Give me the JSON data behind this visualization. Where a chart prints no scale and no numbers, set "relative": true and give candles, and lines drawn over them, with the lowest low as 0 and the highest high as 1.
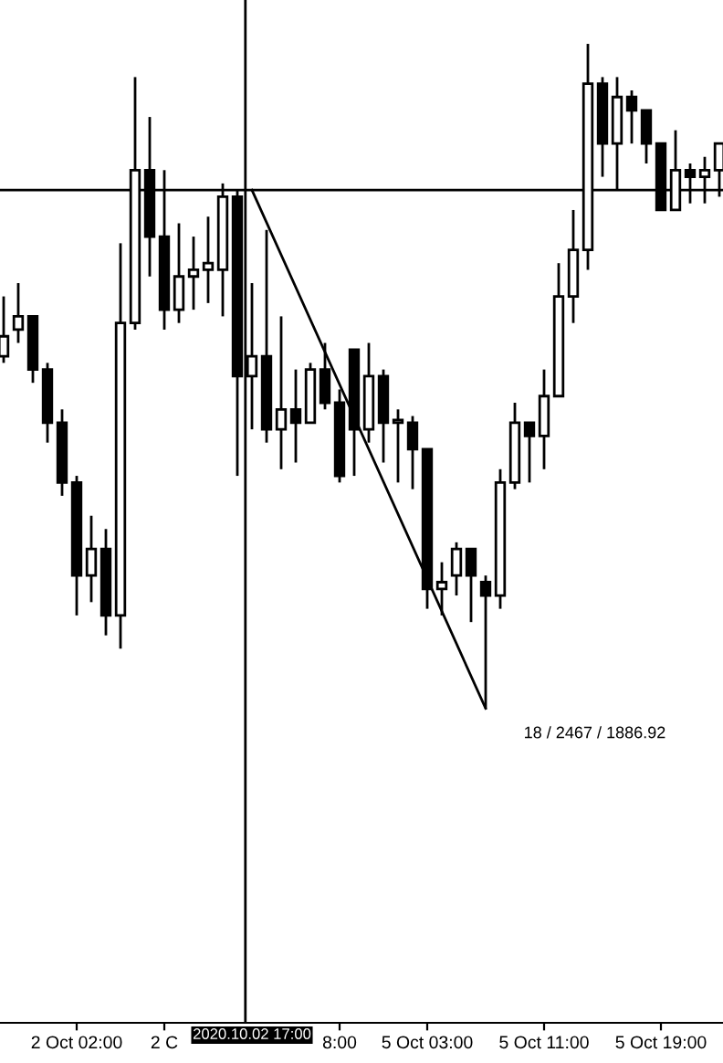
{
  "chart_data": {
    "type": "candlestick",
    "relative": true,
    "categories": [
      null,
      null,
      null,
      null,
      null,
      "2 Oct 02:00",
      null,
      null,
      null,
      null,
      null,
      "2 C",
      null,
      null,
      null,
      null,
      null,
      null,
      null,
      null,
      null,
      null,
      null,
      "8:00",
      null,
      null,
      null,
      null,
      null,
      "5 Oct 03:00",
      null,
      null,
      null,
      null,
      null,
      null,
      null,
      "5 Oct 11:00",
      null,
      null,
      null,
      null,
      null,
      null,
      null,
      "5 Oct 19:00",
      null,
      null,
      null,
      null
    ],
    "ohlc": [
      [
        0.53,
        0.62,
        0.52,
        0.56
      ],
      [
        0.57,
        0.64,
        0.55,
        0.59
      ],
      [
        0.59,
        0.59,
        0.49,
        0.51
      ],
      [
        0.51,
        0.52,
        0.4,
        0.43
      ],
      [
        0.43,
        0.45,
        0.32,
        0.34
      ],
      [
        0.34,
        0.35,
        0.14,
        0.2
      ],
      [
        0.2,
        0.29,
        0.16,
        0.24
      ],
      [
        0.24,
        0.27,
        0.11,
        0.14
      ],
      [
        0.14,
        0.7,
        0.09,
        0.58
      ],
      [
        0.58,
        0.95,
        0.57,
        0.81
      ],
      [
        0.81,
        0.89,
        0.65,
        0.71
      ],
      [
        0.71,
        0.81,
        0.57,
        0.6
      ],
      [
        0.6,
        0.73,
        0.58,
        0.65
      ],
      [
        0.65,
        0.71,
        0.6,
        0.66
      ],
      [
        0.66,
        0.74,
        0.61,
        0.67
      ],
      [
        0.66,
        0.79,
        0.59,
        0.77
      ],
      [
        0.77,
        0.78,
        0.35,
        0.5
      ],
      [
        0.5,
        0.64,
        0.42,
        0.53
      ],
      [
        0.53,
        0.72,
        0.4,
        0.42
      ],
      [
        0.42,
        0.59,
        0.36,
        0.45
      ],
      [
        0.45,
        0.51,
        0.37,
        0.43
      ],
      [
        0.43,
        0.52,
        0.43,
        0.51
      ],
      [
        0.51,
        0.55,
        0.45,
        0.46
      ],
      [
        0.46,
        0.48,
        0.34,
        0.35
      ],
      [
        0.54,
        0.54,
        0.35,
        0.42
      ],
      [
        0.42,
        0.55,
        0.4,
        0.5
      ],
      [
        0.5,
        0.51,
        0.37,
        0.43
      ],
      [
        0.43,
        0.45,
        0.34,
        0.43
      ],
      [
        0.43,
        0.44,
        0.33,
        0.39
      ],
      [
        0.39,
        0.39,
        0.15,
        0.18
      ],
      [
        0.18,
        0.22,
        0.14,
        0.19
      ],
      [
        0.2,
        0.25,
        0.17,
        0.24
      ],
      [
        0.24,
        0.24,
        0.13,
        0.2
      ],
      [
        0.19,
        0.2,
        0.0,
        0.17
      ],
      [
        0.17,
        0.36,
        0.15,
        0.34
      ],
      [
        0.34,
        0.46,
        0.33,
        0.43
      ],
      [
        0.43,
        0.43,
        0.34,
        0.41
      ],
      [
        0.41,
        0.51,
        0.36,
        0.47
      ],
      [
        0.47,
        0.67,
        0.47,
        0.62
      ],
      [
        0.62,
        0.75,
        0.58,
        0.69
      ],
      [
        0.69,
        1.0,
        0.66,
        0.94
      ],
      [
        0.94,
        0.95,
        0.8,
        0.85
      ],
      [
        0.85,
        0.95,
        0.78,
        0.92
      ],
      [
        0.92,
        0.93,
        0.85,
        0.9
      ],
      [
        0.9,
        0.9,
        0.82,
        0.85
      ],
      [
        0.85,
        0.85,
        0.75,
        0.75
      ],
      [
        0.75,
        0.87,
        0.75,
        0.81
      ],
      [
        0.81,
        0.82,
        0.76,
        0.8
      ],
      [
        0.8,
        0.83,
        0.76,
        0.81
      ],
      [
        0.81,
        0.85,
        0.77,
        0.85
      ]
    ],
    "series": [
      {
        "type": "line",
        "color": "#000000",
        "values": [
          null,
          null,
          null,
          null,
          null,
          null,
          null,
          null,
          null,
          null,
          null,
          null,
          null,
          null,
          null,
          null,
          null,
          0.78,
          null,
          null,
          null,
          null,
          null,
          null,
          null,
          null,
          null,
          null,
          null,
          null,
          null,
          null,
          null,
          0.0,
          null,
          null,
          null,
          null,
          null,
          null,
          null,
          null,
          null,
          null,
          null,
          null,
          null,
          null,
          null,
          null
        ]
      }
    ],
    "ref_lines": [
      {
        "axis": "y",
        "value": 0.78,
        "color": "#000000"
      }
    ],
    "annotations": [
      "2020.10.02 17:00",
      "18 / 2467 / 1886.92"
    ],
    "grid": false,
    "legend": false
  }
}
